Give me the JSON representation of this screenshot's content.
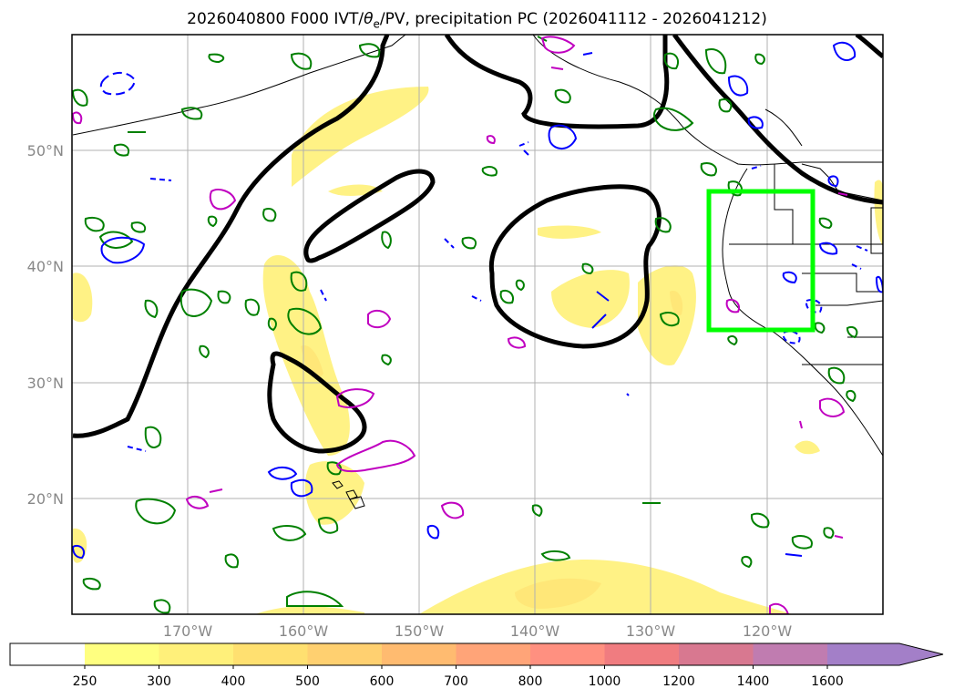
{
  "title": {
    "prefix": "2026040800 F000 IVT/",
    "theta": "θ",
    "theta_sub": "e",
    "suffix": "/PV, precipitation PC (2026041112 - 2026041212)"
  },
  "map": {
    "lon_range": [
      -180,
      -110
    ],
    "lat_range": [
      10,
      60
    ],
    "lat_ticks": [
      {
        "lat": 20,
        "label": "20°N"
      },
      {
        "lat": 30,
        "label": "30°N"
      },
      {
        "lat": 40,
        "label": "40°N"
      },
      {
        "lat": 50,
        "label": "50°N"
      }
    ],
    "lon_ticks": [
      {
        "lon": -170,
        "label": "170°W"
      },
      {
        "lon": -160,
        "label": "160°W"
      },
      {
        "lon": -150,
        "label": "150°W"
      },
      {
        "lon": -140,
        "label": "140°W"
      },
      {
        "lon": -130,
        "label": "130°W"
      },
      {
        "lon": -120,
        "label": "120°W"
      }
    ],
    "gridlines": true,
    "highlight_box": {
      "lon": [
        -125,
        -116
      ],
      "lat": [
        34.5,
        46.5
      ],
      "color": "#00ff00"
    },
    "colors": {
      "contour_black": "#000000",
      "pv_green": "#008000",
      "theta_blue": "#0000ff",
      "magenta": "#c000c0",
      "ivt_fill": "#ffef66"
    }
  },
  "colorbar": {
    "levels": [
      {
        "label": "250",
        "color": "#ffff80"
      },
      {
        "label": "300",
        "color": "#fff07a"
      },
      {
        "label": "400",
        "color": "#ffe070"
      },
      {
        "label": "500",
        "color": "#ffd070"
      },
      {
        "label": "600",
        "color": "#ffbb70"
      },
      {
        "label": "700",
        "color": "#ffa478"
      },
      {
        "label": "800",
        "color": "#ff9080"
      },
      {
        "label": "1000",
        "color": "#f07c80"
      },
      {
        "label": "1200",
        "color": "#d87890"
      },
      {
        "label": "1400",
        "color": "#c07cb0"
      },
      {
        "label": "1600",
        "color": "#a37fc8"
      }
    ],
    "extend": "max"
  }
}
